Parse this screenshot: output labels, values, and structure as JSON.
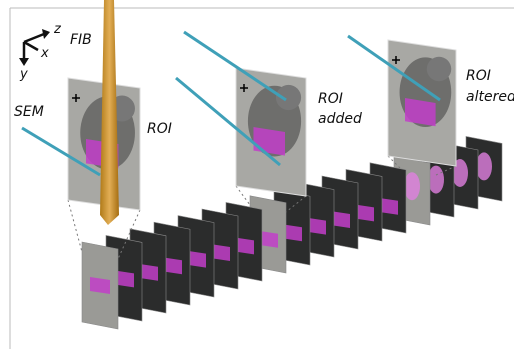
{
  "labels": {
    "fib": "FIB",
    "sem": "SEM",
    "roi": "ROI",
    "roi_added": [
      "ROI",
      "added"
    ],
    "roi_altered": [
      "ROI",
      "altered"
    ]
  },
  "axes": {
    "z": "z",
    "x": "x",
    "y": "y"
  }
}
